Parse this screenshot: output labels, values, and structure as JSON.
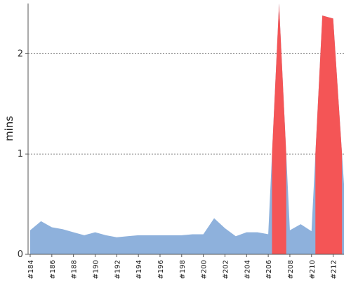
{
  "chart_data": {
    "type": "area",
    "ylabel": "mins",
    "xlabel": "",
    "ylim": [
      0,
      2.5
    ],
    "y_ticks": [
      0,
      1,
      2
    ],
    "y_tick_labels": [
      "0",
      "1",
      "2"
    ],
    "grid": true,
    "x": [
      184,
      185,
      186,
      187,
      188,
      189,
      190,
      191,
      192,
      193,
      194,
      195,
      196,
      197,
      198,
      199,
      200,
      201,
      202,
      203,
      204,
      205,
      206,
      207,
      208,
      209,
      210,
      211,
      212,
      213
    ],
    "x_tick_labels": [
      "#184",
      "#186",
      "#188",
      "#190",
      "#192",
      "#194",
      "#196",
      "#198",
      "#200",
      "#202",
      "#204",
      "#206",
      "#208",
      "#210",
      "#212"
    ],
    "x_tick_values": [
      184,
      186,
      188,
      190,
      192,
      194,
      196,
      198,
      200,
      202,
      204,
      206,
      208,
      210,
      212
    ],
    "values": [
      0.24,
      0.33,
      0.27,
      0.25,
      0.22,
      0.19,
      0.22,
      0.19,
      0.17,
      0.18,
      0.19,
      0.19,
      0.19,
      0.19,
      0.19,
      0.2,
      0.2,
      0.36,
      0.26,
      0.18,
      0.22,
      0.22,
      0.2,
      2.5,
      0.24,
      0.3,
      0.23,
      2.38,
      2.35,
      0.7
    ],
    "colors": {
      "normal": "#8eb1dc",
      "highlight": "#f45556",
      "axis": "#555555",
      "grid": "#777777"
    },
    "highlight_threshold": 1.0
  }
}
